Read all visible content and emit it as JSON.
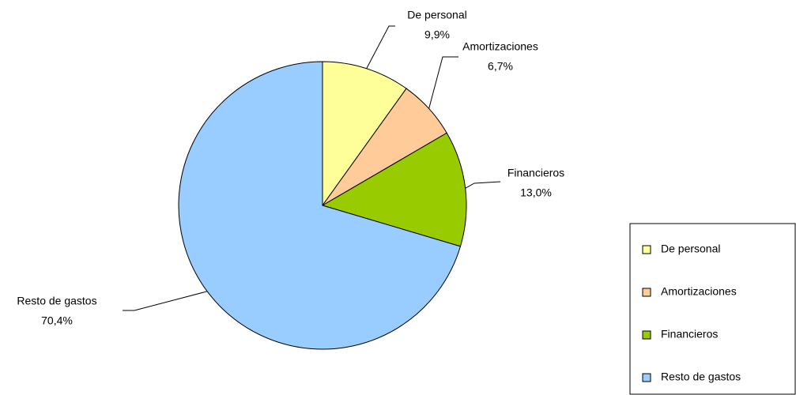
{
  "chart_data": {
    "type": "pie",
    "categories": [
      "De personal",
      "Amortizaciones",
      "Financieros",
      "Resto de gastos"
    ],
    "values": [
      9.9,
      6.7,
      13.0,
      70.4
    ],
    "value_labels": [
      "9,9%",
      "6,7%",
      "13,0%",
      "70,4%"
    ],
    "colors": [
      "#ffff99",
      "#ffcc99",
      "#99cc00",
      "#99ccff"
    ],
    "legend": "right"
  }
}
